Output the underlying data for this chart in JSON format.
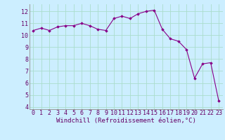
{
  "x": [
    0,
    1,
    2,
    3,
    4,
    5,
    6,
    7,
    8,
    9,
    10,
    11,
    12,
    13,
    14,
    15,
    16,
    17,
    18,
    19,
    20,
    21,
    22,
    23
  ],
  "y": [
    10.4,
    10.6,
    10.4,
    10.7,
    10.8,
    10.8,
    11.0,
    10.8,
    10.5,
    10.4,
    11.4,
    11.6,
    11.4,
    11.8,
    12.0,
    12.1,
    10.5,
    9.7,
    9.5,
    8.8,
    6.4,
    7.6,
    7.7,
    4.5
  ],
  "line_color": "#880088",
  "marker": "D",
  "marker_size": 1.8,
  "bg_color": "#cceeff",
  "grid_color": "#aaddcc",
  "xlabel": "Windchill (Refroidissement éolien,°C)",
  "xlabel_fontsize": 6.5,
  "ylabel_ticks": [
    4,
    5,
    6,
    7,
    8,
    9,
    10,
    11,
    12
  ],
  "xlim": [
    -0.5,
    23.5
  ],
  "ylim": [
    3.8,
    12.6
  ],
  "tick_fontsize": 6.0,
  "xtick_labels": [
    "0",
    "1",
    "2",
    "3",
    "4",
    "5",
    "6",
    "7",
    "8",
    "9",
    "10",
    "11",
    "12",
    "13",
    "14",
    "15",
    "16",
    "17",
    "18",
    "19",
    "20",
    "21",
    "22",
    "23"
  ]
}
